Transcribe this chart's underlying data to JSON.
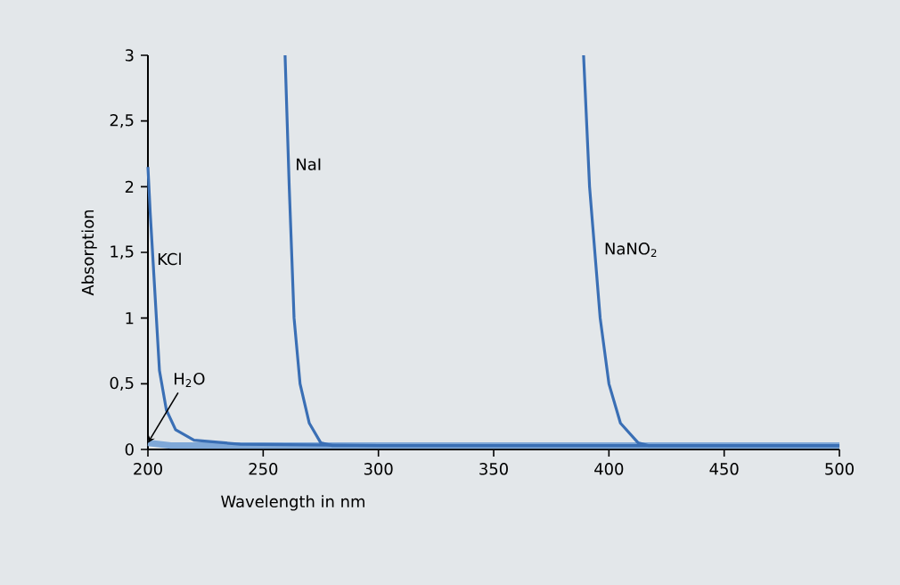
{
  "chart_data": {
    "type": "line",
    "xlabel": "Wavelength in nm",
    "ylabel": "Absorption",
    "xlim": [
      200,
      500
    ],
    "ylim": [
      0,
      3
    ],
    "xticks": [
      200,
      250,
      300,
      350,
      400,
      450,
      500
    ],
    "yticks": [
      0,
      {
        "value": 0.5,
        "label": "0,5"
      },
      1,
      {
        "value": 1.5,
        "label": "1,5"
      },
      2,
      {
        "value": 2.5,
        "label": "2,5"
      },
      3
    ],
    "marker": "none",
    "line_style": "solid",
    "series": [
      {
        "color": "#7fa8d8",
        "x": [
          200,
          210,
          250,
          300,
          400,
          500
        ],
        "values": [
          0.05,
          0.03,
          0.03,
          0.03,
          0.03,
          0.03
        ]
      },
      {
        "color": "#3a6fb5",
        "x": [
          200,
          201,
          203,
          205,
          208,
          212,
          220,
          240,
          300,
          500
        ],
        "values": [
          2.15,
          1.8,
          1.2,
          0.6,
          0.3,
          0.15,
          0.07,
          0.04,
          0.03,
          0.03
        ]
      },
      {
        "color": "#3a6fb5",
        "x": [
          259.5,
          261.3,
          263.4,
          266,
          270,
          275,
          280,
          500
        ],
        "values": [
          3,
          2,
          1,
          0.5,
          0.2,
          0.05,
          0.03,
          0.03
        ]
      },
      {
        "color": "#3a6fb5",
        "x": [
          389,
          391.6,
          396.2,
          400,
          405,
          412.7,
          417,
          500
        ],
        "values": [
          3,
          2,
          1,
          0.5,
          0.2,
          0.05,
          0.03,
          0.03
        ]
      }
    ],
    "annotations": [
      {
        "text": "H$_{2}$O",
        "x": 210,
        "y": 0.53
      },
      {
        "text": "KCl",
        "x": 203,
        "y": 1.45
      },
      {
        "text": "NaI",
        "x": 263,
        "y": 2.17
      },
      {
        "text": "NaNO$_{2}$",
        "x": 397,
        "y": 1.52
      }
    ]
  }
}
